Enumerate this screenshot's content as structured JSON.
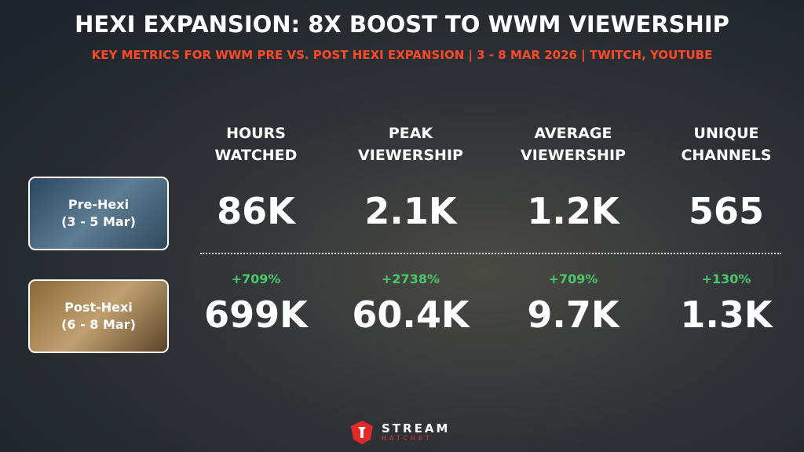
{
  "header": {
    "title": "HEXI EXPANSION: 8X BOOST TO WWM VIEWERSHIP",
    "subtitle": "KEY METRICS FOR WWM PRE VS. POST HEXI EXPANSION | 3 - 8 MAR 2026 | TWITCH, YOUTUBE"
  },
  "table": {
    "columns": [
      "HOURS WATCHED",
      "PEAK VIEWERSHIP",
      "AVERAGE VIEWERSHIP",
      "UNIQUE CHANNELS"
    ],
    "rows": [
      {
        "label": "Pre-Hexi",
        "period": "(3 - 5 Mar)",
        "values": [
          "86K",
          "2.1K",
          "1.2K",
          "565"
        ]
      },
      {
        "label": "Post-Hexi",
        "period": "(6 - 8 Mar)",
        "changes": [
          "+709%",
          "+2738%",
          "+709%",
          "+130%"
        ],
        "values": [
          "699K",
          "60.4K",
          "9.7K",
          "1.3K"
        ]
      }
    ]
  },
  "footer": {
    "brand": "STREAM",
    "brand_sub": "HATCHET"
  }
}
